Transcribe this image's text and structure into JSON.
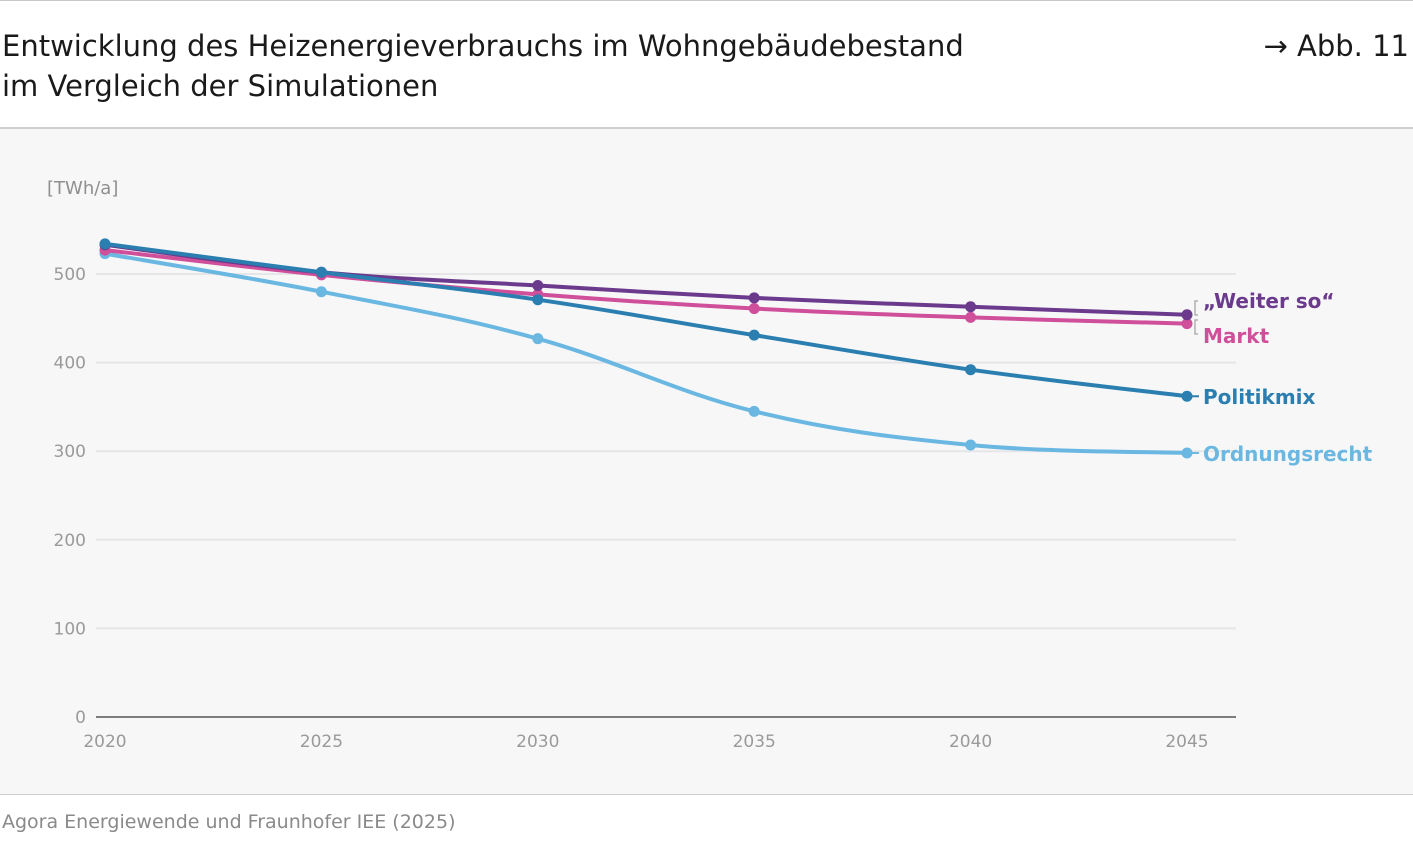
{
  "header": {
    "title_line1": "Entwicklung des Heizenergieverbrauchs im Wohngebäudebestand",
    "title_line2": "im Vergleich der Simulationen",
    "figure_ref": "→ Abb. 11"
  },
  "footer": {
    "source": "Agora Energiewende und Fraunhofer IEE (2025)"
  },
  "chart_data": {
    "type": "line",
    "title": "Entwicklung des Heizenergieverbrauchs im Wohngebäudebestand im Vergleich der Simulationen",
    "ylabel": "[TWh/a]",
    "xlabel": "",
    "x": [
      2020,
      2025,
      2030,
      2035,
      2040,
      2045
    ],
    "x_tick_labels": [
      "2020",
      "2025",
      "2030",
      "2035",
      "2040",
      "2045"
    ],
    "y_ticks": [
      0,
      100,
      200,
      300,
      400,
      500
    ],
    "ylim": [
      0,
      540
    ],
    "grid": true,
    "legend": "direct labels at line ends",
    "series": [
      {
        "name": "„Weiter so“",
        "color": "#6b3a8c",
        "values": [
          533,
          502,
          487,
          473,
          463,
          454
        ]
      },
      {
        "name": "Markt",
        "color": "#d04f9a",
        "values": [
          527,
          499,
          477,
          461,
          451,
          444
        ]
      },
      {
        "name": "Politikmix",
        "color": "#2a7fb0",
        "values": [
          534,
          502,
          471,
          431,
          392,
          362
        ]
      },
      {
        "name": "Ordnungsrecht",
        "color": "#6ab8e2",
        "values": [
          523,
          480,
          427,
          345,
          307,
          298
        ]
      }
    ]
  }
}
